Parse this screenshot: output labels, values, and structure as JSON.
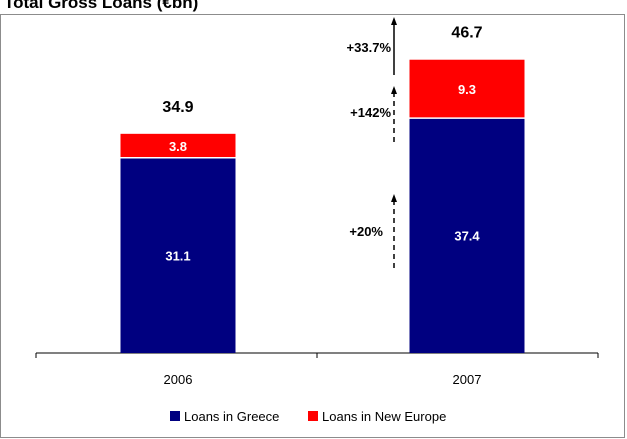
{
  "chart_data": {
    "type": "bar",
    "stacked": true,
    "title": "Total Gross Loans (€bn)",
    "categories": [
      "2006",
      "2007"
    ],
    "series": [
      {
        "name": "Loans in Greece",
        "values": [
          31.1,
          37.4
        ],
        "color": "#000080"
      },
      {
        "name": "Loans in New Europe",
        "values": [
          3.8,
          9.3
        ],
        "color": "#ff0000"
      }
    ],
    "totals": [
      "34.9",
      "46.7"
    ],
    "value_labels": [
      [
        "31.1",
        "37.4"
      ],
      [
        "3.8",
        "9.3"
      ]
    ],
    "ylim": [
      0,
      50
    ],
    "grid": false,
    "legend_position": "bottom",
    "annotations": [
      {
        "text": "+33.7%",
        "refers_to": "total"
      },
      {
        "text": "+142%",
        "refers_to": "Loans in New Europe"
      },
      {
        "text": "+20%",
        "refers_to": "Loans in Greece"
      }
    ]
  }
}
